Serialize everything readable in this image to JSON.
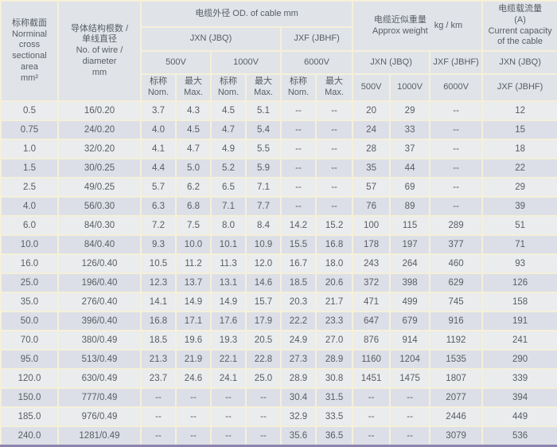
{
  "table": {
    "title_semantic": "cable specification table",
    "header": {
      "area": "标称截面\nNorminal\ncross\nsectional\narea\nmm²",
      "wire": "导体结构根数 /\n单线直径\nNo. of wire /\ndiameter\nmm",
      "od_title": "电缆外径  OD. of cable  mm",
      "weight_title": "电缆近似重量\nApprox weight",
      "weight_unit": "kg / km",
      "capacity_title": "电缆载流量\n(A)\nCurrent capacity\nof the cable",
      "jxn": "JXN (JBQ)",
      "jxf": "JXF (JBHF)",
      "v500": "500V",
      "v1000": "1000V",
      "v6000": "6000V",
      "nom": "标称\nNom.",
      "max": "最大\nMax."
    },
    "column_ids": [
      "area",
      "wire",
      "od-500v-nom",
      "od-500v-max",
      "od-1000v-nom",
      "od-1000v-max",
      "od-6000v-nom",
      "od-6000v-max",
      "weight-500v",
      "weight-1000v",
      "weight-6000v",
      "capacity"
    ],
    "rows": [
      [
        "0.5",
        "16/0.20",
        "3.7",
        "4.3",
        "4.5",
        "5.1",
        "--",
        "--",
        "20",
        "29",
        "--",
        "12"
      ],
      [
        "0.75",
        "24/0.20",
        "4.0",
        "4.5",
        "4.7",
        "5.4",
        "--",
        "--",
        "24",
        "33",
        "--",
        "15"
      ],
      [
        "1.0",
        "32/0.20",
        "4.1",
        "4.7",
        "4.9",
        "5.5",
        "--",
        "--",
        "28",
        "37",
        "--",
        "18"
      ],
      [
        "1.5",
        "30/0.25",
        "4.4",
        "5.0",
        "5.2",
        "5.9",
        "--",
        "--",
        "35",
        "44",
        "--",
        "22"
      ],
      [
        "2.5",
        "49/0.25",
        "5.7",
        "6.2",
        "6.5",
        "7.1",
        "--",
        "--",
        "57",
        "69",
        "--",
        "29"
      ],
      [
        "4.0",
        "56/0.30",
        "6.3",
        "6.8",
        "7.1",
        "7.7",
        "--",
        "--",
        "76",
        "89",
        "--",
        "39"
      ],
      [
        "6.0",
        "84/0.30",
        "7.2",
        "7.5",
        "8.0",
        "8.4",
        "14.2",
        "15.2",
        "100",
        "115",
        "289",
        "51"
      ],
      [
        "10.0",
        "84/0.40",
        "9.3",
        "10.0",
        "10.1",
        "10.9",
        "15.5",
        "16.8",
        "178",
        "197",
        "377",
        "71"
      ],
      [
        "16.0",
        "126/0.40",
        "10.5",
        "11.2",
        "11.3",
        "12.0",
        "16.7",
        "18.0",
        "243",
        "264",
        "460",
        "93"
      ],
      [
        "25.0",
        "196/0.40",
        "12.3",
        "13.7",
        "13.1",
        "14.6",
        "18.5",
        "20.6",
        "372",
        "398",
        "629",
        "126"
      ],
      [
        "35.0",
        "276/0.40",
        "14.1",
        "14.9",
        "14.9",
        "15.7",
        "20.3",
        "21.7",
        "471",
        "499",
        "745",
        "158"
      ],
      [
        "50.0",
        "396/0.40",
        "16.8",
        "17.1",
        "17.6",
        "17.9",
        "22.2",
        "23.3",
        "647",
        "679",
        "916",
        "191"
      ],
      [
        "70.0",
        "380/0.49",
        "18.5",
        "19.6",
        "19.3",
        "20.5",
        "24.9",
        "27.0",
        "876",
        "914",
        "1192",
        "241"
      ],
      [
        "95.0",
        "513/0.49",
        "21.3",
        "21.9",
        "22.1",
        "22.8",
        "27.3",
        "28.9",
        "1160",
        "1204",
        "1535",
        "290"
      ],
      [
        "120.0",
        "630/0.49",
        "23.7",
        "24.6",
        "24.1",
        "25.0",
        "28.9",
        "30.8",
        "1451",
        "1475",
        "1807",
        "339"
      ],
      [
        "150.0",
        "777/0.49",
        "--",
        "--",
        "--",
        "--",
        "30.4",
        "31.5",
        "--",
        "--",
        "2077",
        "394"
      ],
      [
        "185.0",
        "976/0.49",
        "--",
        "--",
        "--",
        "--",
        "32.9",
        "33.5",
        "--",
        "--",
        "2446",
        "449"
      ],
      [
        "240.0",
        "1281/0.49",
        "--",
        "--",
        "--",
        "--",
        "35.6",
        "36.5",
        "--",
        "--",
        "3079",
        "536"
      ]
    ]
  },
  "colors": {
    "grid_line": "#f5f0d9",
    "header_bg": "#e0e4e8",
    "row_light": "#eaecee",
    "row_dark": "#dcdfe7",
    "text": "#585d64",
    "bottom_border": "#8d84ad"
  }
}
